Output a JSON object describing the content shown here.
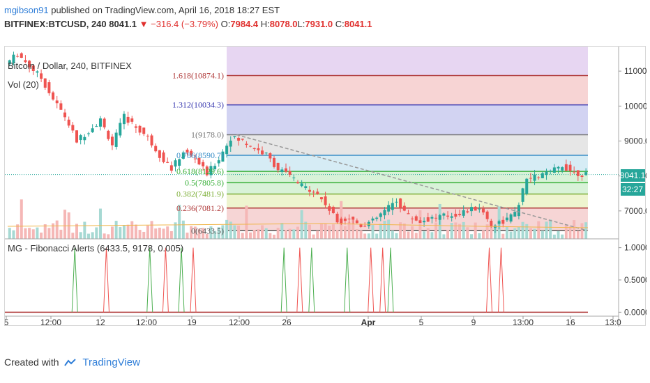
{
  "header": {
    "author": "mgibson91",
    "published": " published on TradingView.com, April 16, 2018 18:27 EST",
    "symbol": "BITFINEX:BTCUSD, 240",
    "last": "8041.1",
    "change": "−316.4 (−3.79%)",
    "o_label": "O:",
    "o": "7984.4",
    "h_label": "H:",
    "h": "8078.0",
    "l_label": "L:",
    "l": "7931.0",
    "c_label": "C:",
    "c": "8041.1"
  },
  "main_pane": {
    "title": "Bitcoin / Dollar, 240, BITFINEX",
    "vol_label": "Vol (20)",
    "price_badge": "8041.1",
    "countdown_badge": "32:27"
  },
  "indicator_pane": {
    "title": "MG - Fibonacci Alerts (6433.5, 9178, 0.005)"
  },
  "footer": {
    "created_with": "Created with",
    "brand": "TradingView"
  },
  "colors": {
    "up": "#26a69a",
    "down": "#ef5350",
    "fib_band_purple": "#e7d6f2",
    "fib_band_red": "#f7d4d4",
    "fib_band_blue": "#d2d3f2",
    "fib_band_grey": "#e6e6e6",
    "fib_band_cyan": "#d6ecf5",
    "fib_band_green": "#d8f2d8",
    "fib_band_yellow": "#eef4cf",
    "fib_band_pink": "#f6d5d5"
  },
  "chart_data": [
    {
      "type": "candlestick",
      "title": "Bitcoin / Dollar, 240, BITFINEX",
      "y_ticks": [
        11000.0,
        10000.0,
        9000.0,
        8000.0,
        7000.0
      ],
      "y_tick_labels": [
        "11000.0",
        "10000.0",
        "9000.0",
        "8000.0",
        "7000.0"
      ],
      "ylim": [
        6200,
        11700
      ],
      "x_tick_labels": [
        "5",
        "12:00",
        "12",
        "12:00",
        "19",
        "12:00",
        "26",
        "Apr",
        "5",
        "9",
        "13:00",
        "16",
        "13:0"
      ],
      "fibonacci_levels": [
        {
          "ratio": "1.618",
          "price": 10874.1,
          "label": "1.618(10874.1)"
        },
        {
          "ratio": "1.312",
          "price": 10034.3,
          "label": "1.312(10034.3)"
        },
        {
          "ratio": "1",
          "price": 9178.0,
          "label": "1(9178.0)"
        },
        {
          "ratio": "0.786",
          "price": 8590.7,
          "label": "0.786(8590.7)"
        },
        {
          "ratio": "0.618",
          "price": 8129.6,
          "label": "0.618(8129.6)"
        },
        {
          "ratio": "0.5",
          "price": 7805.8,
          "label": "0.5(7805.8)"
        },
        {
          "ratio": "0.382",
          "price": 7481.9,
          "label": "0.382(7481.9)"
        },
        {
          "ratio": "0.236",
          "price": 7081.2,
          "label": "0.236(7081.2)"
        },
        {
          "ratio": "0",
          "price": 6433.5,
          "label": "0(6433.5)"
        }
      ],
      "price_path": [
        [
          0,
          11200
        ],
        [
          3,
          11500
        ],
        [
          6,
          11150
        ],
        [
          9,
          10800
        ],
        [
          12,
          10200
        ],
        [
          15,
          9700
        ],
        [
          18,
          9000
        ],
        [
          21,
          9300
        ],
        [
          24,
          9600
        ],
        [
          27,
          8900
        ],
        [
          30,
          9700
        ],
        [
          33,
          9400
        ],
        [
          36,
          9100
        ],
        [
          39,
          8600
        ],
        [
          42,
          8200
        ],
        [
          45,
          8700
        ],
        [
          48,
          8500
        ],
        [
          51,
          8050
        ],
        [
          54,
          8500
        ],
        [
          57,
          9100
        ],
        [
          60,
          9000
        ],
        [
          63,
          8800
        ],
        [
          66,
          8600
        ],
        [
          69,
          8200
        ],
        [
          72,
          8000
        ],
        [
          75,
          7700
        ],
        [
          78,
          7600
        ],
        [
          81,
          7200
        ],
        [
          84,
          6700
        ],
        [
          87,
          6800
        ],
        [
          90,
          6600
        ],
        [
          93,
          6700
        ],
        [
          96,
          7000
        ],
        [
          99,
          7300
        ],
        [
          102,
          6850
        ],
        [
          105,
          6700
        ],
        [
          108,
          6800
        ],
        [
          111,
          6850
        ],
        [
          114,
          6900
        ],
        [
          117,
          7000
        ],
        [
          120,
          7100
        ],
        [
          123,
          6600
        ],
        [
          126,
          6700
        ],
        [
          129,
          6900
        ],
        [
          132,
          7900
        ],
        [
          135,
          8000
        ],
        [
          138,
          8100
        ],
        [
          141,
          8300
        ],
        [
          144,
          8100
        ],
        [
          147,
          8041
        ]
      ],
      "signals": [
        {
          "x": 17,
          "color": "green"
        },
        {
          "x": 25,
          "color": "red"
        },
        {
          "x": 36,
          "color": "green"
        },
        {
          "x": 40,
          "color": "red"
        },
        {
          "x": 44,
          "color": "green"
        },
        {
          "x": 47,
          "color": "red"
        },
        {
          "x": 70,
          "color": "green"
        },
        {
          "x": 74,
          "color": "red"
        },
        {
          "x": 77,
          "color": "green"
        },
        {
          "x": 86,
          "color": "green"
        },
        {
          "x": 92,
          "color": "red"
        },
        {
          "x": 95,
          "color": "red"
        },
        {
          "x": 97,
          "color": "green"
        },
        {
          "x": 122,
          "color": "red"
        },
        {
          "x": 125,
          "color": "red"
        }
      ]
    },
    {
      "type": "line",
      "title": "MG - Fibonacci Alerts (6433.5, 9178, 0.005)",
      "y_ticks": [
        1.0,
        0.5,
        0.0
      ],
      "y_tick_labels": [
        "1.0000",
        "0.5000",
        "0.0000"
      ],
      "ylim": [
        -0.05,
        1.05
      ]
    }
  ]
}
